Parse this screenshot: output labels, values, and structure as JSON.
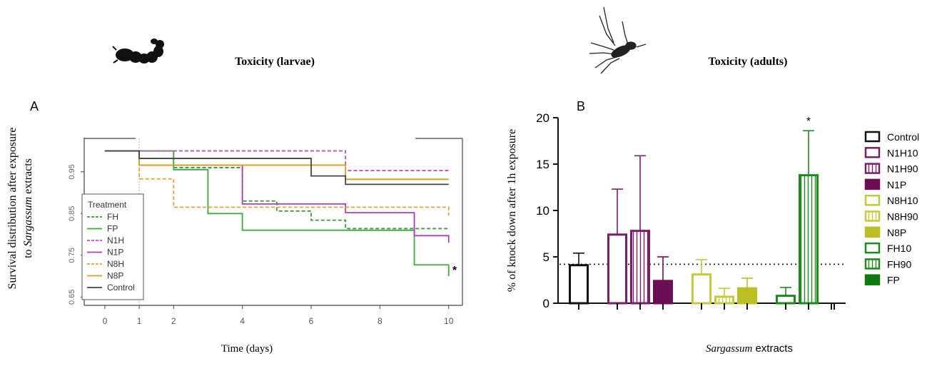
{
  "header": {
    "left_title": "Toxicity (larvae)",
    "right_title": "Toxicity (adults)",
    "larva_icon": "larva-silhouette-icon",
    "mosquito_icon": "mosquito-silhouette-icon"
  },
  "panel_a": {
    "letter": "A",
    "ylabel_line1": "Survival distribution after exposure",
    "ylabel_line2_prefix": "to ",
    "ylabel_line2_italic": "Sargassum",
    "ylabel_line2_suffix": " extracts",
    "xlabel": "Time (days)",
    "legend_title": "Treatment",
    "significance": "*"
  },
  "panel_b": {
    "letter": "B",
    "ylabel": "% of  knock down  after 1h exposure",
    "xlabel_italic": "Sargassum",
    "xlabel_suffix": " extracts",
    "significance": "*"
  },
  "chart_data": [
    {
      "type": "line",
      "subtype": "step",
      "title": "",
      "xlabel": "Time (days)",
      "ylabel": "Survival distribution after exposure to Sargassum extracts",
      "xlim": [
        -0.6,
        10.4
      ],
      "ylim": [
        0.63,
        1.03
      ],
      "xticks": [
        0,
        1,
        2,
        4,
        6,
        8,
        10
      ],
      "yticks": [
        0.65,
        0.75,
        0.85,
        0.95
      ],
      "ytick_labels": [
        "0.65",
        "0.75",
        "0.85",
        "0.95"
      ],
      "legend_title": "Treatment",
      "legend_position": "bottom-left",
      "series": [
        {
          "name": "FH",
          "color": "#2e9e2e",
          "dash": true,
          "x": [
            0,
            1,
            2,
            4,
            5,
            6,
            7,
            10
          ],
          "y": [
            1.0,
            1.0,
            0.96,
            0.88,
            0.856,
            0.834,
            0.814,
            0.814
          ]
        },
        {
          "name": "FP",
          "color": "#3daa3d",
          "dash": false,
          "x": [
            0,
            1,
            2,
            3,
            4,
            9,
            10
          ],
          "y": [
            1.0,
            1.0,
            0.955,
            0.85,
            0.81,
            0.727,
            0.7
          ]
        },
        {
          "name": "N1H",
          "color": "#c24cc2",
          "dash": true,
          "x": [
            0,
            7,
            10
          ],
          "y": [
            1.0,
            0.953,
            0.953
          ]
        },
        {
          "name": "N1P",
          "color": "#b03bb8",
          "dash": false,
          "x": [
            0,
            1,
            4,
            7,
            9,
            10
          ],
          "y": [
            1.0,
            0.966,
            0.873,
            0.852,
            0.797,
            0.78
          ]
        },
        {
          "name": "N8H",
          "color": "#e0a530",
          "dash": true,
          "x": [
            0,
            1,
            2,
            10
          ],
          "y": [
            1.0,
            0.933,
            0.865,
            0.845
          ]
        },
        {
          "name": "N8P",
          "color": "#d4a020",
          "dash": false,
          "x": [
            0,
            1,
            7,
            10
          ],
          "y": [
            1.0,
            0.966,
            0.932,
            0.932
          ]
        },
        {
          "name": "Control",
          "color": "#444444",
          "dash": false,
          "x": [
            0,
            1,
            6,
            7,
            10
          ],
          "y": [
            1.0,
            0.982,
            0.94,
            0.92,
            0.92
          ]
        }
      ],
      "annotations": [
        {
          "text": "*",
          "x": 10,
          "y": 0.7
        }
      ]
    },
    {
      "type": "bar",
      "title": "",
      "xlabel": "Sargassum extracts",
      "ylabel": "% of  knock down  after 1h exposure",
      "ylim": [
        0,
        20
      ],
      "yticks": [
        0,
        5,
        10,
        15,
        20
      ],
      "reference_line": 4.2,
      "legend_position": "right",
      "categories": [
        "Control",
        "N1H10",
        "N1H90",
        "N1P",
        "N8H10",
        "N8H90",
        "N8P",
        "FH10",
        "FH90",
        "FP"
      ],
      "series": [
        {
          "name": "Control",
          "value": 4.1,
          "error": 1.3,
          "color": "#111111",
          "fill": "open",
          "group": 0
        },
        {
          "name": "N1H10",
          "value": 7.4,
          "error": 4.9,
          "color": "#7a1d6b",
          "fill": "open",
          "group": 1
        },
        {
          "name": "N1H90",
          "value": 7.8,
          "error": 8.1,
          "color": "#7a1d6b",
          "fill": "striped",
          "group": 1
        },
        {
          "name": "N1P",
          "value": 2.4,
          "error": 2.6,
          "color": "#6a0f55",
          "fill": "solid",
          "group": 1
        },
        {
          "name": "N8H10",
          "value": 3.1,
          "error": 1.6,
          "color": "#c5c93a",
          "fill": "open",
          "group": 2
        },
        {
          "name": "N8H90",
          "value": 0.7,
          "error": 0.9,
          "color": "#c5c93a",
          "fill": "striped",
          "group": 2
        },
        {
          "name": "N8P",
          "value": 1.6,
          "error": 1.1,
          "color": "#bcbf24",
          "fill": "solid",
          "group": 2
        },
        {
          "name": "FH10",
          "value": 0.8,
          "error": 0.9,
          "color": "#1e8a1e",
          "fill": "open",
          "group": 3
        },
        {
          "name": "FH90",
          "value": 13.8,
          "error": 4.8,
          "color": "#1e8a1e",
          "fill": "striped",
          "group": 3
        },
        {
          "name": "FP",
          "value": null,
          "error": null,
          "color": "#0f7a0f",
          "fill": "solid",
          "group": 3
        }
      ],
      "annotations": [
        {
          "text": "*",
          "category": "FH90"
        }
      ]
    }
  ]
}
